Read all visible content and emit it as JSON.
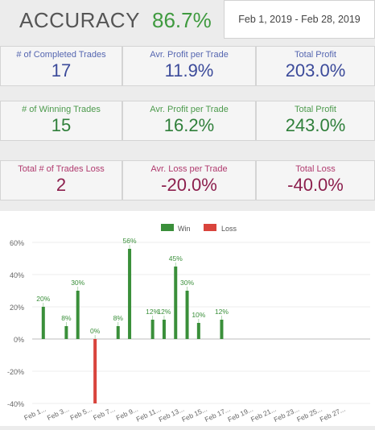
{
  "header": {
    "accuracy_label": "ACCURACY",
    "accuracy_value": "86.7%",
    "date_range": "Feb 1, 2019 - Feb 28, 2019"
  },
  "rows": [
    {
      "theme": "blue",
      "cards": [
        {
          "label": "# of Completed Trades",
          "value": "17"
        },
        {
          "label": "Avr. Profit per Trade",
          "value": "11.9%"
        },
        {
          "label": "Total Profit",
          "value": "203.0%"
        }
      ]
    },
    {
      "theme": "green",
      "cards": [
        {
          "label": "# of Winning Trades",
          "value": "15"
        },
        {
          "label": "Avr. Profit per Trade",
          "value": "16.2%"
        },
        {
          "label": "Total Profit",
          "value": "243.0%"
        }
      ]
    },
    {
      "theme": "red",
      "cards": [
        {
          "label": "Total # of Trades Loss",
          "value": "2"
        },
        {
          "label": "Avr. Loss per Trade",
          "value": "-20.0%"
        },
        {
          "label": "Total Loss",
          "value": "-40.0%"
        }
      ]
    }
  ],
  "chart_data": {
    "type": "bar",
    "legend_position": "top-center",
    "series": [
      {
        "name": "Win",
        "color": "#3a8f3a"
      },
      {
        "name": "Loss",
        "color": "#d9443c"
      }
    ],
    "ylim": [
      -40,
      60
    ],
    "yticks": [
      "60%",
      "40%",
      "20%",
      "0%",
      "-20%",
      "-40%"
    ],
    "ytick_values": [
      60,
      40,
      20,
      0,
      -20,
      -40
    ],
    "xticks": [
      "Feb 1...",
      "Feb 3...",
      "Feb 5...",
      "Feb 7...",
      "Feb 9...",
      "Feb 11...",
      "Feb 13...",
      "Feb 15...",
      "Feb 17...",
      "Feb 19...",
      "Feb 21...",
      "Feb 23...",
      "Feb 25...",
      "Feb 27..."
    ],
    "bars": [
      {
        "x": 1,
        "value": 20,
        "label": "20%",
        "series": "Win"
      },
      {
        "x": 3,
        "value": 8,
        "label": "8%",
        "series": "Win"
      },
      {
        "x": 4,
        "value": 30,
        "label": "30%",
        "series": "Win"
      },
      {
        "x": 5.5,
        "value": 0,
        "label": "0%",
        "series": "Win"
      },
      {
        "x": 5.5,
        "value": -40,
        "label": "",
        "series": "Loss"
      },
      {
        "x": 7.5,
        "value": 8,
        "label": "8%",
        "series": "Win"
      },
      {
        "x": 8.5,
        "value": 56,
        "label": "56%",
        "series": "Win"
      },
      {
        "x": 10.5,
        "value": 12,
        "label": "12%",
        "series": "Win"
      },
      {
        "x": 11.5,
        "value": 12,
        "label": "12%",
        "series": "Win"
      },
      {
        "x": 12.5,
        "value": 45,
        "label": "45%",
        "series": "Win"
      },
      {
        "x": 13.5,
        "value": 30,
        "label": "30%",
        "series": "Win"
      },
      {
        "x": 14.5,
        "value": 10,
        "label": "10%",
        "series": "Win"
      },
      {
        "x": 16.5,
        "value": 12,
        "label": "12%",
        "series": "Win"
      }
    ]
  }
}
